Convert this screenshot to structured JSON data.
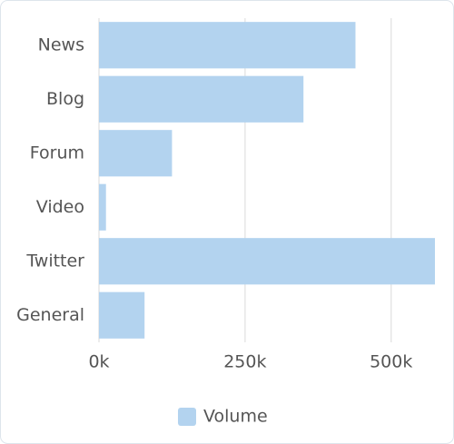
{
  "chart_data": {
    "type": "bar",
    "orientation": "horizontal",
    "categories": [
      "News",
      "Blog",
      "Forum",
      "Video",
      "Twitter",
      "General"
    ],
    "series": [
      {
        "name": "Volume",
        "color": "#b3d3ef",
        "values": [
          439000,
          350000,
          125000,
          12000,
          575000,
          78000
        ]
      }
    ],
    "xlim": [
      0,
      575000
    ],
    "xticks": [
      {
        "value": 0,
        "label": "0k"
      },
      {
        "value": 250000,
        "label": "250k"
      },
      {
        "value": 500000,
        "label": "500k"
      }
    ],
    "grid": true,
    "legend": "bottom"
  }
}
